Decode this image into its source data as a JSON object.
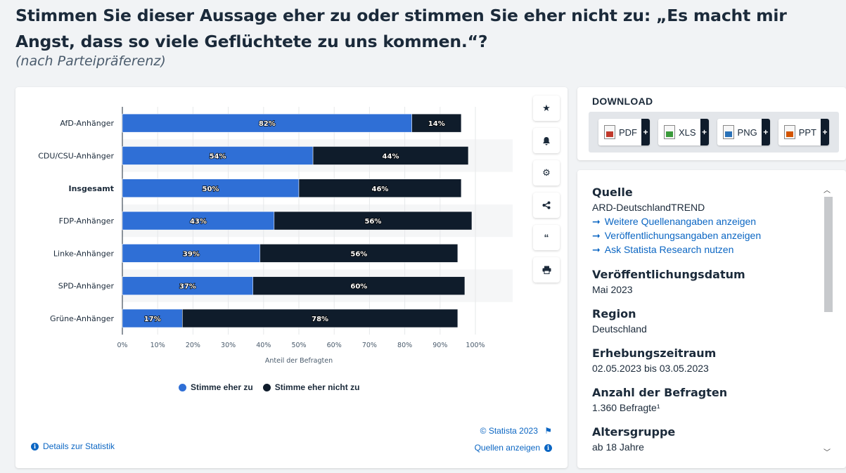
{
  "header": {
    "title": "Stimmen Sie dieser Aussage eher zu oder stimmen Sie eher nicht zu: „Es macht mir Angst, dass so viele Geflüchtete zu uns kommen.“?",
    "subtitle": "(nach Parteipräferenz)"
  },
  "chart_data": {
    "type": "bar",
    "orientation": "horizontal",
    "stacked": true,
    "categories": [
      "AfD-Anhänger",
      "CDU/CSU-Anhänger",
      "Insgesamt",
      "FDP-Anhänger",
      "Linke-Anhänger",
      "SPD-Anhänger",
      "Grüne-Anhänger"
    ],
    "highlighted_category": "Insgesamt",
    "series": [
      {
        "name": "Stimme eher zu",
        "color": "#2f6fd6",
        "values": [
          82,
          54,
          50,
          43,
          39,
          37,
          17
        ],
        "labels": [
          "82%",
          "54%",
          "50%",
          "43%",
          "39%",
          "37%",
          "17%"
        ]
      },
      {
        "name": "Stimme eher nicht zu",
        "color": "#0f1c2b",
        "values": [
          14,
          44,
          46,
          56,
          56,
          60,
          78
        ],
        "labels": [
          "14%",
          "44%",
          "46%",
          "56%",
          "56%",
          "60%",
          "78%"
        ]
      }
    ],
    "xlabel": "Anteil der Befragten",
    "xlim": [
      0,
      100
    ],
    "xticks": [
      "0%",
      "10%",
      "20%",
      "30%",
      "40%",
      "50%",
      "60%",
      "70%",
      "80%",
      "90%",
      "100%"
    ],
    "legend_position": "bottom"
  },
  "chart_card": {
    "copyright": "© Statista 2023",
    "details_link": "Details zur Statistik",
    "sources_link": "Quellen anzeigen",
    "tools": [
      "star-icon",
      "bell-icon",
      "gear-icon",
      "share-icon",
      "quote-icon",
      "print-icon"
    ]
  },
  "download": {
    "heading": "DOWNLOAD",
    "buttons": [
      {
        "label": "PDF",
        "plus": "+",
        "color": "#c0392b"
      },
      {
        "label": "XLS",
        "plus": "+",
        "color": "#3a9a3a"
      },
      {
        "label": "PNG",
        "plus": "+",
        "color": "#2a72b8"
      },
      {
        "label": "PPT",
        "plus": "+",
        "color": "#d35400"
      }
    ]
  },
  "info": {
    "source_heading": "Quelle",
    "source_value": "ARD-DeutschlandTREND",
    "links": [
      "Weitere Quellenangaben anzeigen",
      "Veröffentlichungsangaben anzeigen",
      "Ask Statista Research nutzen"
    ],
    "pubdate_heading": "Veröffentlichungsdatum",
    "pubdate_value": "Mai 2023",
    "region_heading": "Region",
    "region_value": "Deutschland",
    "period_heading": "Erhebungszeitraum",
    "period_value": "02.05.2023 bis 03.05.2023",
    "respondents_heading": "Anzahl der Befragten",
    "respondents_value": "1.360 Befragte¹",
    "age_heading": "Altersgruppe",
    "age_value": "ab 18 Jahre"
  }
}
